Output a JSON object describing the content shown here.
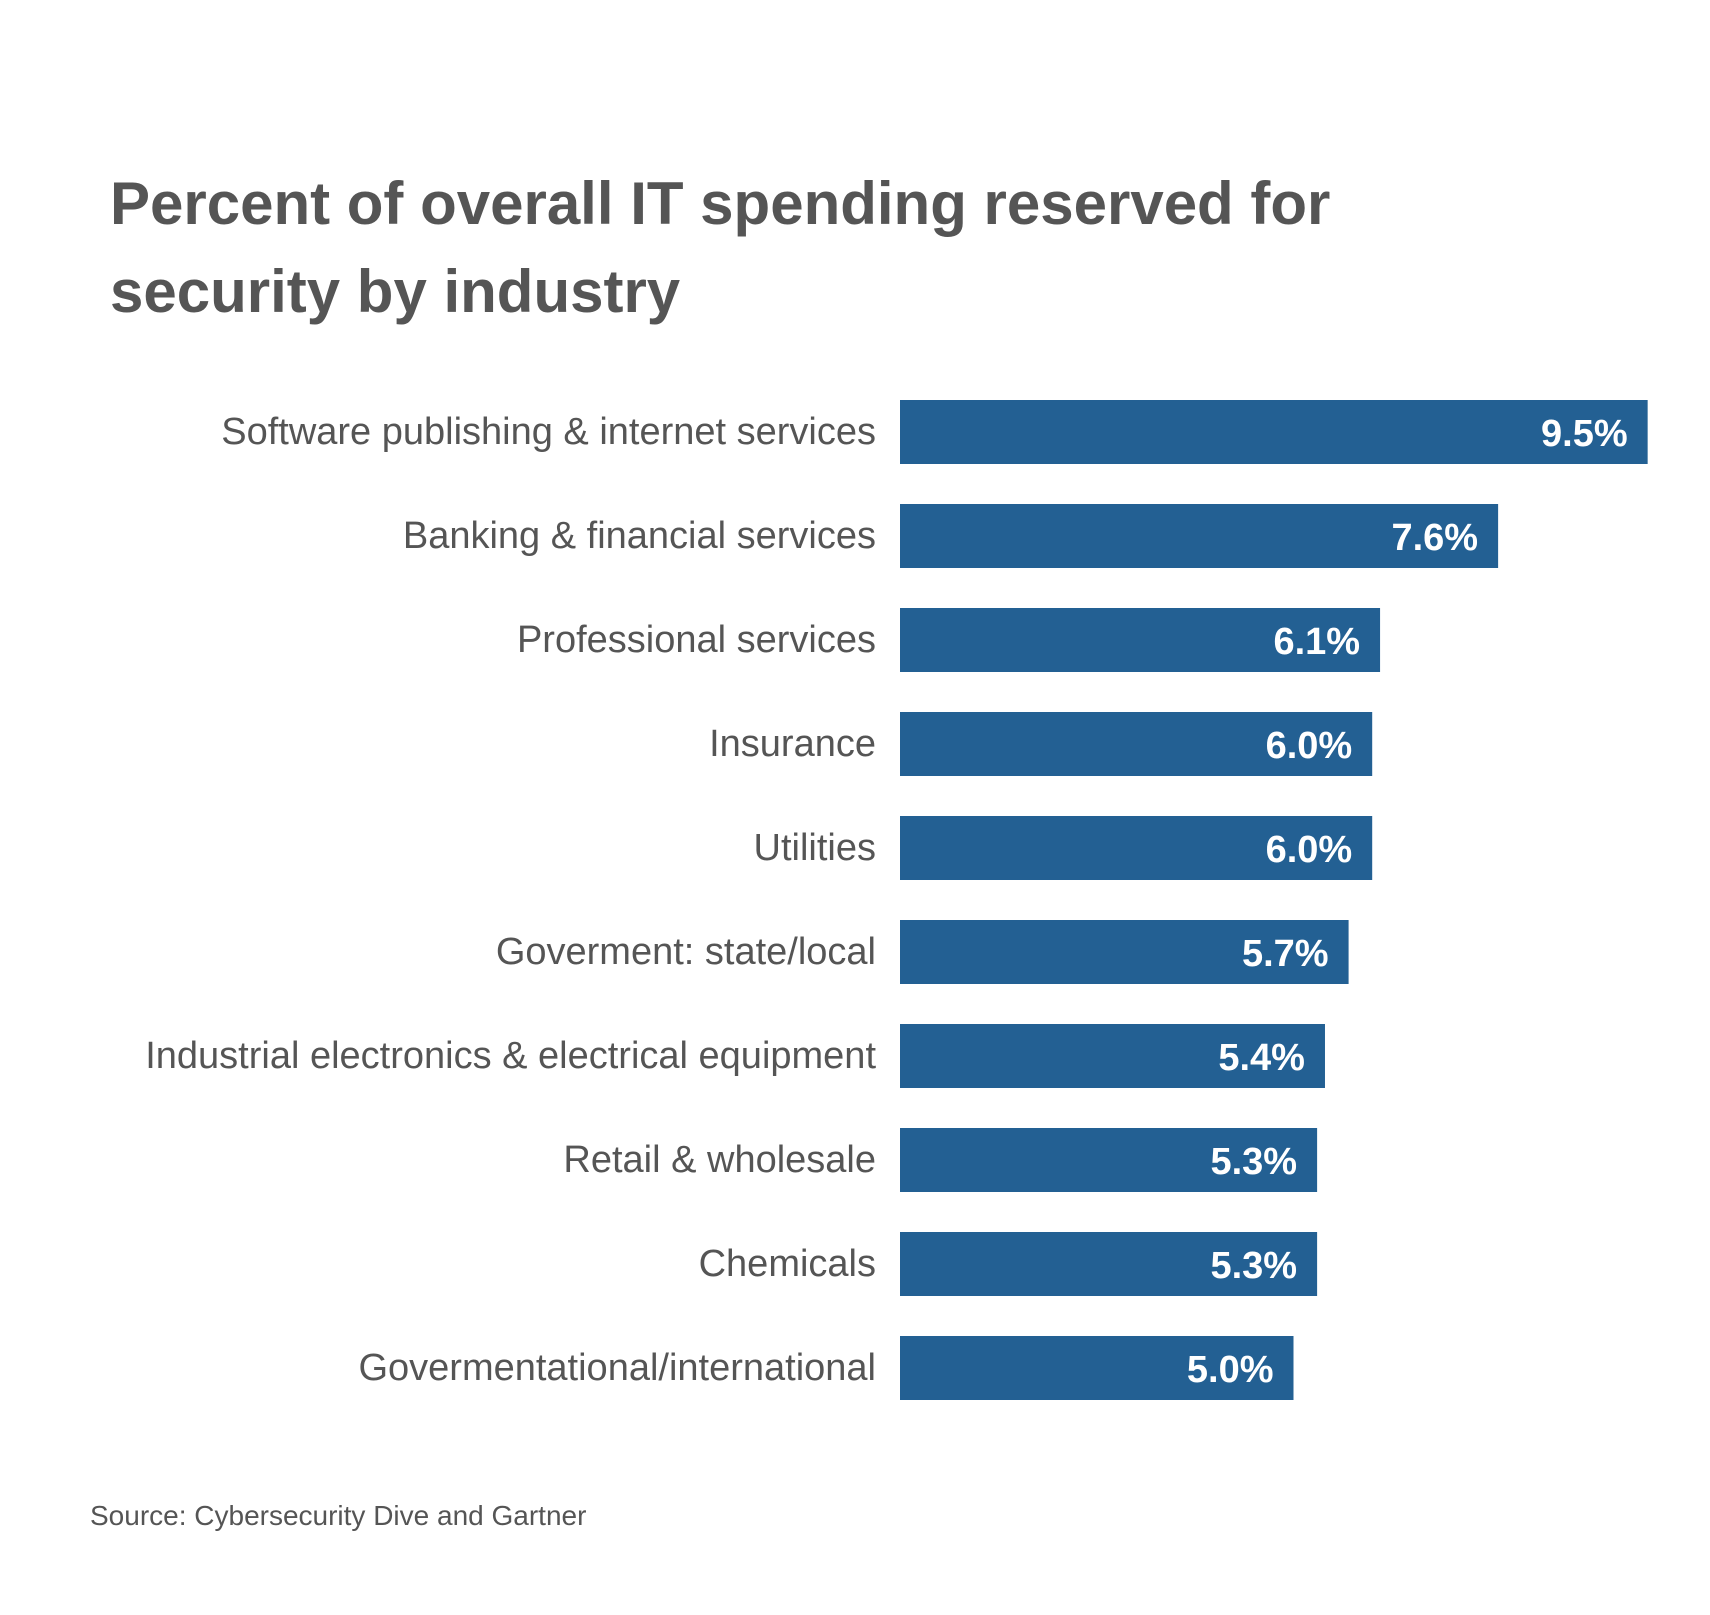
{
  "chart_data": {
    "type": "bar",
    "orientation": "horizontal",
    "title": "Percent of overall IT spending reserved for security by industry",
    "categories": [
      "Software publishing & internet services",
      "Banking & financial services",
      "Professional services",
      "Insurance",
      "Utilities",
      "Goverment: state/local",
      "Industrial electronics & electrical equipment",
      "Retail & wholesale",
      "Chemicals",
      "Govermentational/international"
    ],
    "values": [
      9.5,
      7.6,
      6.1,
      6.0,
      6.0,
      5.7,
      5.4,
      5.3,
      5.3,
      5.0
    ],
    "value_labels": [
      "9.5%",
      "7.6%",
      "6.1%",
      "6.0%",
      "6.0%",
      "5.7%",
      "5.4%",
      "5.3%",
      "5.3%",
      "5.0%"
    ],
    "xlabel": "",
    "ylabel": "",
    "grid": false,
    "legend": "none",
    "bar_color": "#236093",
    "label_color": "#555555",
    "value_label_color": "#ffffff",
    "source": "Source: Cybersecurity Dive and Gartner"
  }
}
